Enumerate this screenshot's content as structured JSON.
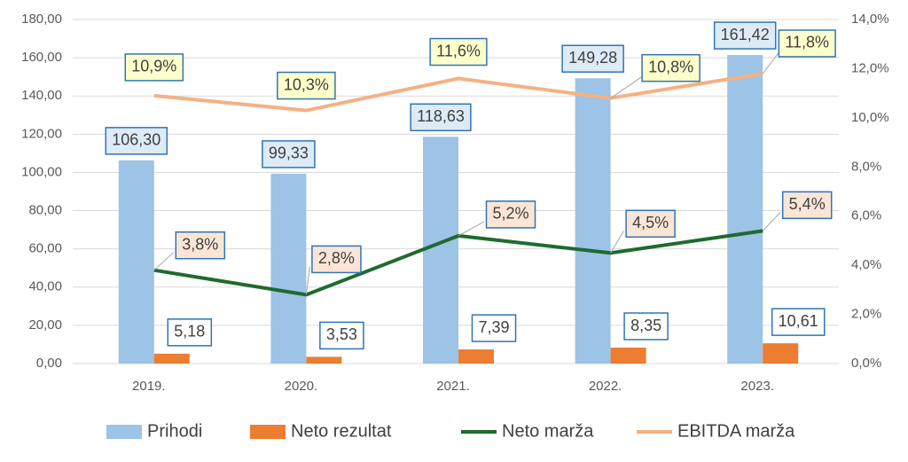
{
  "chart_data": {
    "type": "bar",
    "categories": [
      "2019.",
      "2020.",
      "2021.",
      "2022.",
      "2023."
    ],
    "series": [
      {
        "name": "Prihodi",
        "type": "bar",
        "color": "#9dc3e6",
        "values": [
          106.3,
          99.33,
          118.63,
          149.28,
          161.42
        ],
        "value_labels": [
          "106,30",
          "99,33",
          "118,63",
          "149,28",
          "161,42"
        ]
      },
      {
        "name": "Neto rezultat",
        "type": "bar",
        "color": "#ed7d31",
        "values": [
          5.18,
          3.53,
          7.39,
          8.35,
          10.61
        ],
        "value_labels": [
          "5,18",
          "3,53",
          "7,39",
          "8,35",
          "10,61"
        ]
      },
      {
        "name": "Neto marža",
        "type": "line",
        "axis": "y2",
        "color": "#1e6b2e",
        "values": [
          3.8,
          2.8,
          5.2,
          4.5,
          5.4
        ],
        "value_labels": [
          "3,8%",
          "2,8%",
          "5,2%",
          "4,5%",
          "5,4%"
        ]
      },
      {
        "name": "EBITDA marža",
        "type": "line",
        "axis": "y2",
        "color": "#f4b183",
        "values": [
          10.9,
          10.3,
          11.6,
          10.8,
          11.8
        ],
        "value_labels": [
          "10,9%",
          "10,3%",
          "11,6%",
          "10,8%",
          "11,8%"
        ]
      }
    ],
    "ylim": [
      0,
      180
    ],
    "yticks": [
      {
        "value": 0,
        "label": "0,00"
      },
      {
        "value": 20,
        "label": "20,00"
      },
      {
        "value": 40,
        "label": "40,00"
      },
      {
        "value": 60,
        "label": "60,00"
      },
      {
        "value": 80,
        "label": "80,00"
      },
      {
        "value": 100,
        "label": "100,00"
      },
      {
        "value": 120,
        "label": "120,00"
      },
      {
        "value": 140,
        "label": "140,00"
      },
      {
        "value": 160,
        "label": "160,00"
      },
      {
        "value": 180,
        "label": "180,00"
      }
    ],
    "y2lim": [
      0,
      14
    ],
    "y2ticks": [
      {
        "value": 0,
        "label": "0,0%"
      },
      {
        "value": 2,
        "label": "2,0%"
      },
      {
        "value": 4,
        "label": "4,0%"
      },
      {
        "value": 6,
        "label": "6,0%"
      },
      {
        "value": 8,
        "label": "8,0%"
      },
      {
        "value": 10,
        "label": "10,0%"
      },
      {
        "value": 12,
        "label": "12,0%"
      },
      {
        "value": 14,
        "label": "14,0%"
      }
    ],
    "grid": true
  }
}
